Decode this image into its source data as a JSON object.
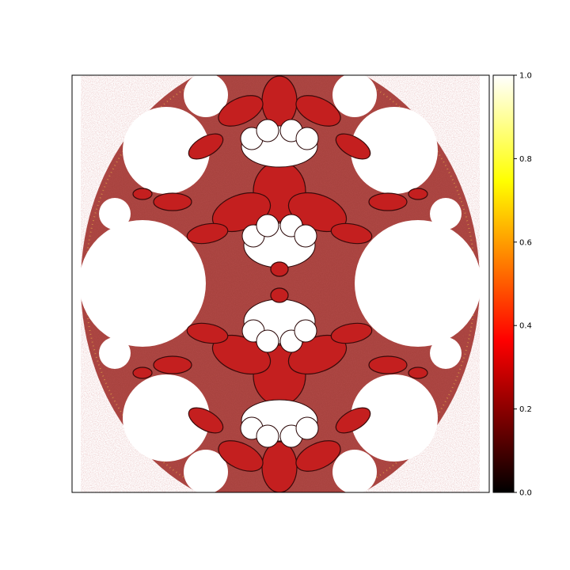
{
  "chart_data": {
    "type": "heatmap",
    "title": "",
    "xlabel": "",
    "ylabel": "",
    "axes_ticks_visible": false,
    "colormap": "hot",
    "colormap_stops": [
      {
        "value": 0.0,
        "color": "#000000"
      },
      {
        "value": 0.365,
        "color": "#ff0000"
      },
      {
        "value": 0.746,
        "color": "#ffff00"
      },
      {
        "value": 1.0,
        "color": "#ffffff"
      }
    ],
    "colorbar": {
      "range": [
        0.0,
        1.0
      ],
      "ticks": [
        0.0,
        0.2,
        0.4,
        0.6,
        0.8,
        1.0
      ],
      "tick_labels": [
        "0.0",
        "0.2",
        "0.4",
        "0.6",
        "0.8",
        "1.0"
      ]
    },
    "description_values": {
      "background_value": 1.0,
      "fractal_lobe_value": 0.3
    }
  }
}
